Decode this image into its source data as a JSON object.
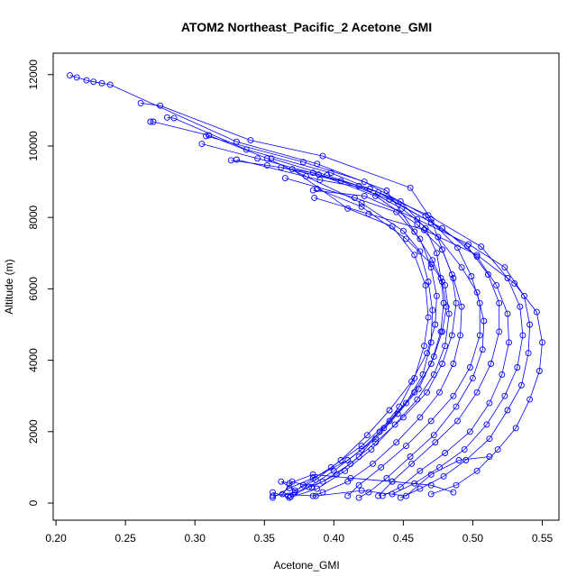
{
  "chart_data": {
    "type": "line",
    "title": "ATOM2 Northeast_Pacific_2 Acetone_GMI",
    "xlabel": "Acetone_GMI",
    "ylabel": "Altitude (m)",
    "xlim": [
      0.198,
      0.562
    ],
    "ylim": [
      -480,
      12600
    ],
    "x_ticks": [
      0.2,
      0.25,
      0.3,
      0.35,
      0.4,
      0.45,
      0.5,
      0.55
    ],
    "x_tick_labels": [
      "0.20",
      "0.25",
      "0.30",
      "0.35",
      "0.40",
      "0.45",
      "0.50",
      "0.55"
    ],
    "y_ticks": [
      0,
      2000,
      4000,
      6000,
      8000,
      10000,
      12000
    ],
    "y_tick_labels": [
      "0",
      "2000",
      "4000",
      "6000",
      "8000",
      "10000",
      "12000"
    ],
    "grid": false,
    "marker": "open-circle",
    "color": "#0000ff",
    "series": [
      {
        "points": [
          [
            0.21,
            11980
          ],
          [
            0.215,
            11920
          ],
          [
            0.222,
            11840
          ],
          [
            0.227,
            11800
          ],
          [
            0.233,
            11760
          ],
          [
            0.239,
            11720
          ],
          [
            0.33,
            10120
          ],
          [
            0.388,
            9500
          ],
          [
            0.438,
            8750
          ],
          [
            0.458,
            7600
          ],
          [
            0.471,
            6800
          ],
          [
            0.478,
            6200
          ],
          [
            0.481,
            5500
          ],
          [
            0.478,
            4800
          ],
          [
            0.472,
            4100
          ],
          [
            0.461,
            3200
          ],
          [
            0.446,
            2500
          ],
          [
            0.43,
            1800
          ],
          [
            0.41,
            1200
          ],
          [
            0.385,
            700
          ],
          [
            0.368,
            420
          ],
          [
            0.356,
            150
          ]
        ]
      },
      {
        "points": [
          [
            0.261,
            11200
          ],
          [
            0.275,
            11130
          ],
          [
            0.34,
            10160
          ],
          [
            0.392,
            9720
          ],
          [
            0.455,
            8830
          ],
          [
            0.47,
            7950
          ],
          [
            0.478,
            7100
          ],
          [
            0.485,
            6400
          ],
          [
            0.488,
            5600
          ],
          [
            0.485,
            4700
          ],
          [
            0.478,
            3900
          ],
          [
            0.467,
            3100
          ],
          [
            0.45,
            2400
          ],
          [
            0.43,
            1700
          ],
          [
            0.412,
            1100
          ],
          [
            0.392,
            600
          ],
          [
            0.372,
            300
          ],
          [
            0.356,
            200
          ]
        ]
      },
      {
        "points": [
          [
            0.28,
            10800
          ],
          [
            0.285,
            10780
          ],
          [
            0.337,
            9900
          ],
          [
            0.398,
            9250
          ],
          [
            0.448,
            8450
          ],
          [
            0.466,
            7700
          ],
          [
            0.474,
            7000
          ],
          [
            0.477,
            6300
          ],
          [
            0.479,
            5600
          ],
          [
            0.477,
            4800
          ],
          [
            0.47,
            3900
          ],
          [
            0.458,
            3100
          ],
          [
            0.44,
            2300
          ],
          [
            0.42,
            1600
          ],
          [
            0.398,
            1000
          ],
          [
            0.378,
            500
          ],
          [
            0.367,
            200
          ]
        ]
      },
      {
        "points": [
          [
            0.268,
            10680
          ],
          [
            0.27,
            10680
          ],
          [
            0.31,
            10300
          ],
          [
            0.352,
            9650
          ],
          [
            0.38,
            9150
          ],
          [
            0.42,
            8400
          ],
          [
            0.45,
            7620
          ],
          [
            0.462,
            7050
          ],
          [
            0.468,
            6200
          ],
          [
            0.471,
            5400
          ],
          [
            0.47,
            4500
          ],
          [
            0.464,
            3600
          ],
          [
            0.452,
            2800
          ],
          [
            0.436,
            2100
          ],
          [
            0.42,
            1500
          ],
          [
            0.4,
            900
          ],
          [
            0.382,
            450
          ],
          [
            0.369,
            180
          ]
        ]
      },
      {
        "points": [
          [
            0.305,
            10060
          ],
          [
            0.345,
            9650
          ],
          [
            0.389,
            9200
          ],
          [
            0.43,
            8600
          ],
          [
            0.46,
            7800
          ],
          [
            0.478,
            7100
          ],
          [
            0.486,
            6300
          ],
          [
            0.492,
            5500
          ],
          [
            0.491,
            4700
          ],
          [
            0.486,
            3900
          ],
          [
            0.476,
            3100
          ],
          [
            0.462,
            2400
          ],
          [
            0.445,
            1700
          ],
          [
            0.428,
            1100
          ],
          [
            0.41,
            600
          ],
          [
            0.392,
            300
          ],
          [
            0.385,
            200
          ]
        ]
      },
      {
        "points": [
          [
            0.308,
            10280
          ],
          [
            0.378,
            9550
          ],
          [
            0.422,
            9000
          ],
          [
            0.466,
            8050
          ],
          [
            0.489,
            7150
          ],
          [
            0.499,
            6350
          ],
          [
            0.505,
            5600
          ],
          [
            0.505,
            4700
          ],
          [
            0.498,
            3800
          ],
          [
            0.486,
            3000
          ],
          [
            0.47,
            2300
          ],
          [
            0.452,
            1600
          ],
          [
            0.434,
            1000
          ],
          [
            0.418,
            500
          ],
          [
            0.41,
            200
          ]
        ]
      },
      {
        "points": [
          [
            0.326,
            9600
          ],
          [
            0.352,
            9460
          ],
          [
            0.385,
            9250
          ],
          [
            0.418,
            8880
          ],
          [
            0.449,
            8250
          ],
          [
            0.475,
            7450
          ],
          [
            0.492,
            6600
          ],
          [
            0.503,
            5900
          ],
          [
            0.508,
            5100
          ],
          [
            0.507,
            4300
          ],
          [
            0.5,
            3500
          ],
          [
            0.488,
            2700
          ],
          [
            0.472,
            1900
          ],
          [
            0.455,
            1300
          ],
          [
            0.438,
            700
          ],
          [
            0.425,
            300
          ],
          [
            0.418,
            150
          ]
        ]
      },
      {
        "points": [
          [
            0.355,
            9650
          ],
          [
            0.395,
            9180
          ],
          [
            0.432,
            8700
          ],
          [
            0.47,
            7860
          ],
          [
            0.496,
            7200
          ],
          [
            0.511,
            6400
          ],
          [
            0.519,
            5600
          ],
          [
            0.519,
            4800
          ],
          [
            0.513,
            3900
          ],
          [
            0.503,
            3100
          ],
          [
            0.489,
            2300
          ],
          [
            0.473,
            1700
          ],
          [
            0.456,
            1100
          ],
          [
            0.442,
            600
          ],
          [
            0.432,
            200
          ]
        ]
      },
      {
        "points": [
          [
            0.362,
            9400
          ],
          [
            0.405,
            9020
          ],
          [
            0.44,
            8500
          ],
          [
            0.478,
            7700
          ],
          [
            0.503,
            6900
          ],
          [
            0.517,
            6100
          ],
          [
            0.525,
            5300
          ],
          [
            0.526,
            4500
          ],
          [
            0.521,
            3600
          ],
          [
            0.512,
            2800
          ],
          [
            0.498,
            2000
          ],
          [
            0.48,
            1400
          ],
          [
            0.462,
            900
          ],
          [
            0.448,
            450
          ],
          [
            0.435,
            200
          ]
        ]
      },
      {
        "points": [
          [
            0.33,
            9620
          ],
          [
            0.39,
            9050
          ],
          [
            0.426,
            8800
          ],
          [
            0.468,
            8060
          ],
          [
            0.506,
            7180
          ],
          [
            0.525,
            6300
          ],
          [
            0.534,
            5500
          ],
          [
            0.536,
            4700
          ],
          [
            0.532,
            3800
          ],
          [
            0.523,
            3000
          ],
          [
            0.51,
            2200
          ],
          [
            0.494,
            1500
          ],
          [
            0.476,
            1000
          ],
          [
            0.458,
            550
          ],
          [
            0.442,
            250
          ]
        ]
      },
      {
        "points": [
          [
            0.385,
            8760
          ],
          [
            0.422,
            8600
          ],
          [
            0.46,
            7950
          ],
          [
            0.497,
            7250
          ],
          [
            0.523,
            6600
          ],
          [
            0.537,
            5800
          ],
          [
            0.541,
            5000
          ],
          [
            0.54,
            4200
          ],
          [
            0.535,
            3300
          ],
          [
            0.525,
            2600
          ],
          [
            0.512,
            1800
          ],
          [
            0.495,
            1200
          ],
          [
            0.479,
            750
          ],
          [
            0.462,
            400
          ],
          [
            0.448,
            150
          ]
        ]
      },
      {
        "points": [
          [
            0.386,
            8550
          ],
          [
            0.425,
            8100
          ],
          [
            0.465,
            7650
          ],
          [
            0.503,
            6950
          ],
          [
            0.53,
            6150
          ],
          [
            0.546,
            5350
          ],
          [
            0.55,
            4500
          ],
          [
            0.548,
            3700
          ],
          [
            0.541,
            2900
          ],
          [
            0.531,
            2100
          ],
          [
            0.518,
            1500
          ],
          [
            0.503,
            900
          ],
          [
            0.488,
            500
          ],
          [
            0.47,
            250
          ]
        ]
      },
      {
        "points": [
          [
            0.388,
            8800
          ],
          [
            0.42,
            8300
          ],
          [
            0.452,
            7400
          ],
          [
            0.47,
            6700
          ],
          [
            0.48,
            6100
          ],
          [
            0.483,
            5300
          ],
          [
            0.48,
            4400
          ],
          [
            0.472,
            3600
          ],
          [
            0.46,
            2900
          ],
          [
            0.444,
            2200
          ],
          [
            0.427,
            1500
          ],
          [
            0.408,
            900
          ],
          [
            0.388,
            400
          ],
          [
            0.368,
            150
          ],
          [
            0.356,
            300
          ]
        ]
      },
      {
        "points": [
          [
            0.365,
            9100
          ],
          [
            0.415,
            8550
          ],
          [
            0.445,
            8150
          ],
          [
            0.462,
            7400
          ],
          [
            0.47,
            6600
          ],
          [
            0.474,
            5800
          ],
          [
            0.473,
            5000
          ],
          [
            0.467,
            4200
          ],
          [
            0.456,
            3400
          ],
          [
            0.44,
            2600
          ],
          [
            0.424,
            1900
          ],
          [
            0.405,
            1200
          ],
          [
            0.387,
            650
          ],
          [
            0.372,
            350
          ],
          [
            0.362,
            600
          ],
          [
            0.368,
            550
          ],
          [
            0.385,
            800
          ],
          [
            0.412,
            700
          ],
          [
            0.442,
            600
          ],
          [
            0.47,
            500
          ],
          [
            0.486,
            300
          ]
        ]
      },
      {
        "points": [
          [
            0.37,
            9350
          ],
          [
            0.41,
            8250
          ],
          [
            0.442,
            7750
          ],
          [
            0.458,
            6950
          ],
          [
            0.466,
            6100
          ],
          [
            0.468,
            5200
          ],
          [
            0.465,
            4400
          ],
          [
            0.458,
            3500
          ],
          [
            0.447,
            2700
          ],
          [
            0.433,
            2000
          ],
          [
            0.418,
            1300
          ],
          [
            0.402,
            800
          ],
          [
            0.384,
            450
          ],
          [
            0.37,
            600
          ],
          [
            0.363,
            250
          ],
          [
            0.387,
            200
          ],
          [
            0.42,
            350
          ],
          [
            0.452,
            200
          ],
          [
            0.47,
            800
          ],
          [
            0.49,
            1200
          ],
          [
            0.512,
            1300
          ]
        ]
      }
    ]
  }
}
